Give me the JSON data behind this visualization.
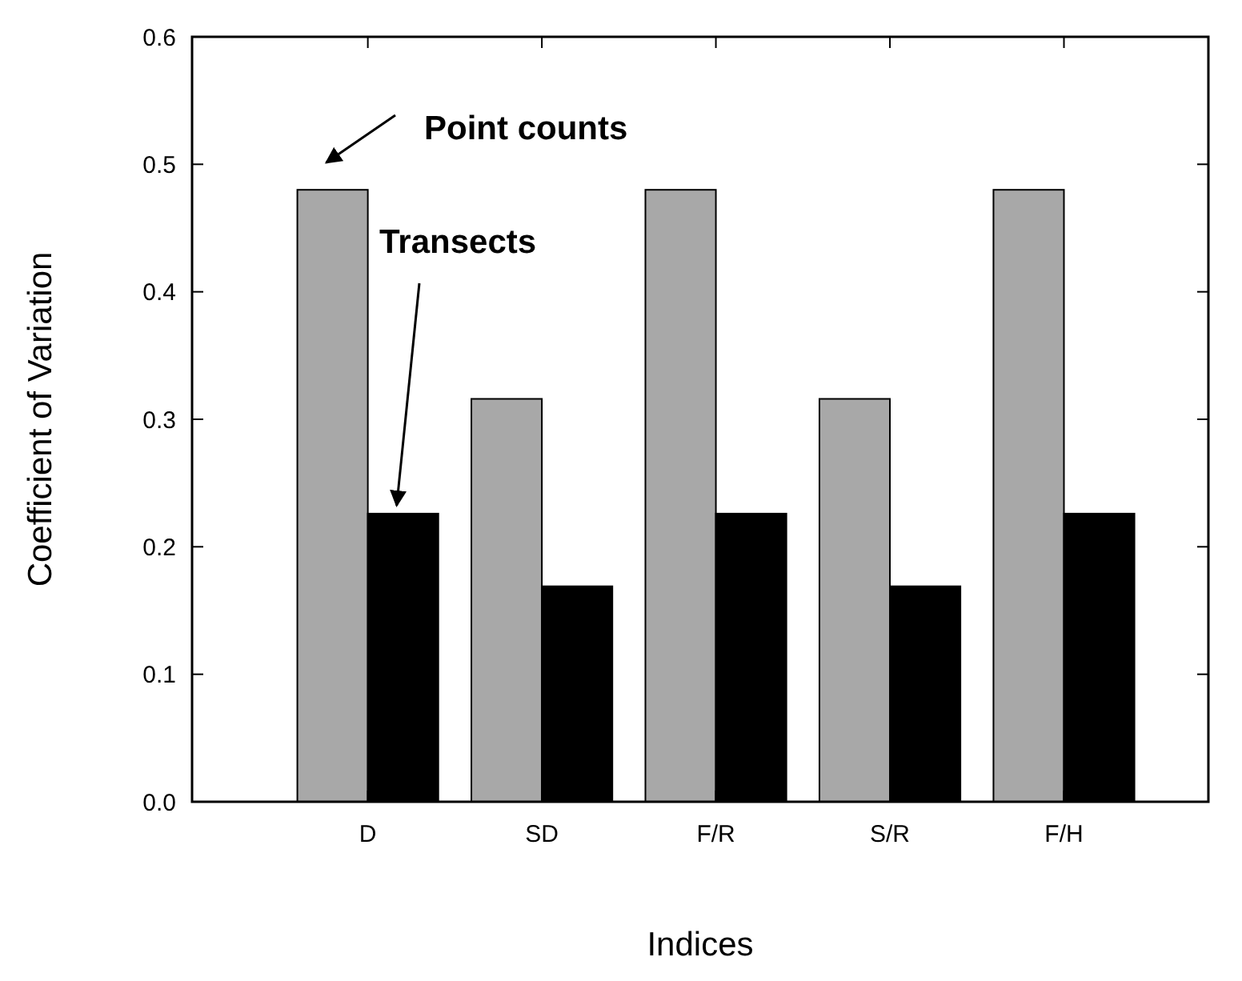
{
  "chart_data": {
    "type": "bar",
    "xlabel": "Indices",
    "ylabel": "Coefficient of Variation",
    "categories": [
      "D",
      "SD",
      "F/R",
      "S/R",
      "F/H"
    ],
    "series": [
      {
        "name": "Point counts",
        "color": "#a8a8a8",
        "values": [
          0.48,
          0.316,
          0.48,
          0.316,
          0.48
        ]
      },
      {
        "name": "Transects",
        "color": "#000000",
        "values": [
          0.226,
          0.169,
          0.226,
          0.169,
          0.226
        ]
      }
    ],
    "ylim": [
      0,
      0.6
    ],
    "yticks": [
      {
        "value": 0,
        "label": "0.0"
      },
      {
        "value": 0.1,
        "label": "0.1"
      },
      {
        "value": 0.2,
        "label": "0.2"
      },
      {
        "value": 0.3,
        "label": "0.3"
      },
      {
        "value": 0.4,
        "label": "0.4"
      },
      {
        "value": 0.5,
        "label": "0.5"
      },
      {
        "value": 0.6,
        "label": "0.6"
      }
    ],
    "grid": false,
    "legend": "top left"
  }
}
